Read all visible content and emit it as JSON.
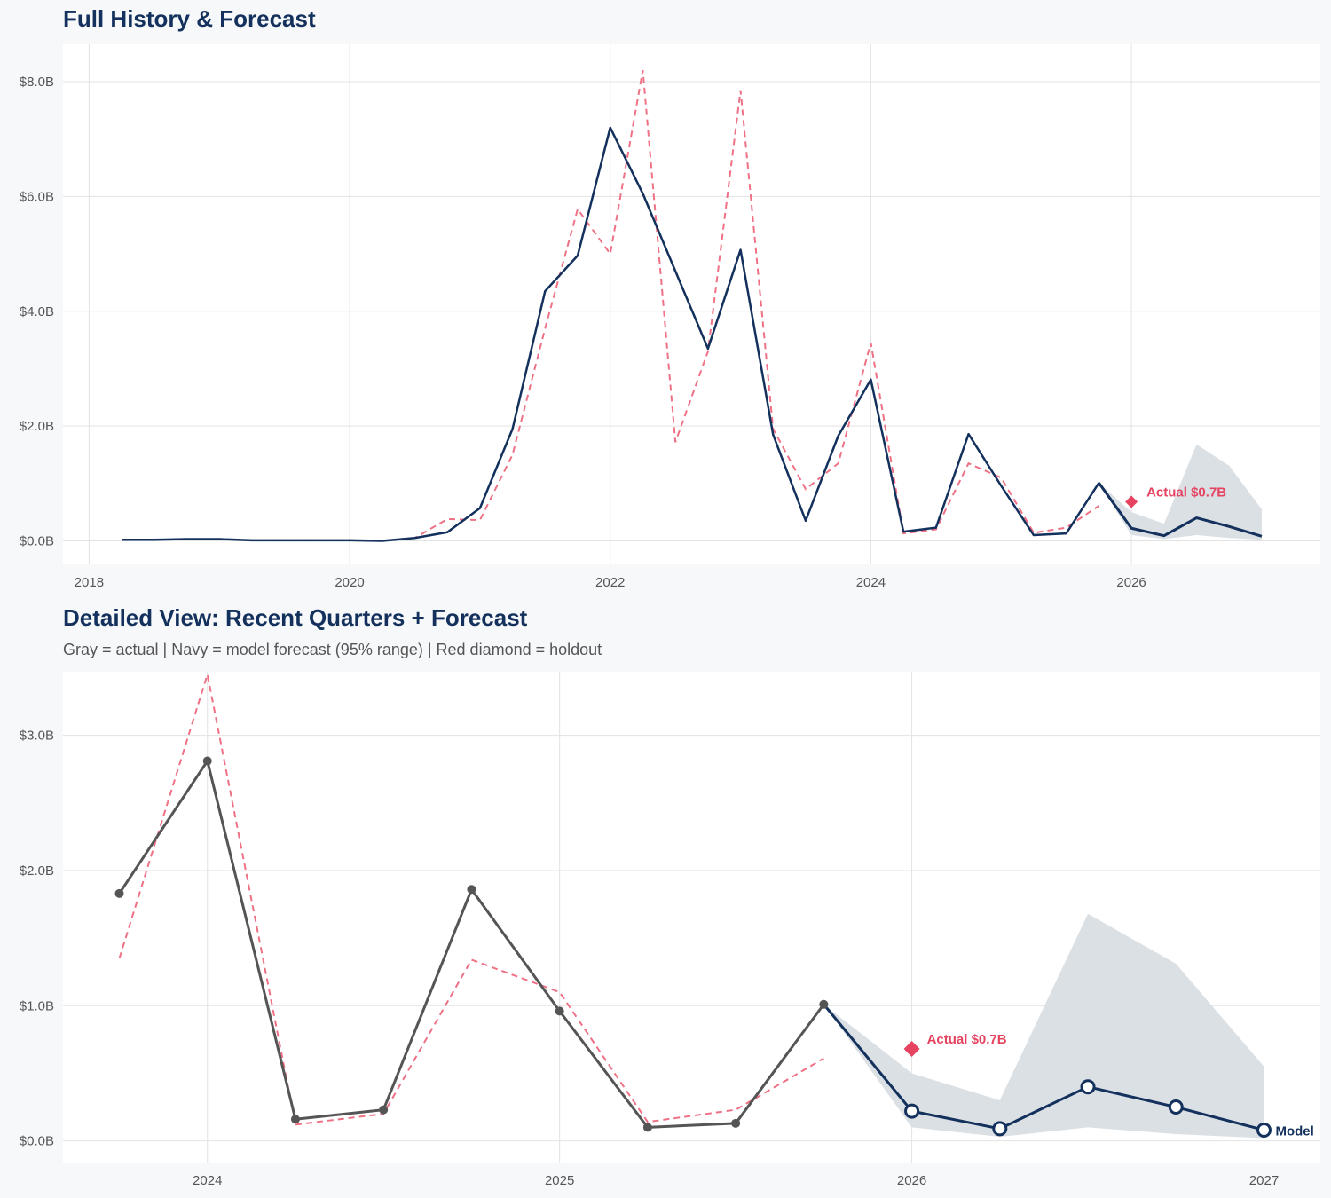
{
  "colors": {
    "actual": "#555555",
    "model": "#13315c",
    "fitted": "#ee7186",
    "holdout": "#e5435f",
    "band": "#d9dee4",
    "grid": "#e3e3e3"
  },
  "chart_data": [
    {
      "type": "line",
      "title": "Full History & Forecast",
      "xlim": [
        2017.8,
        2027.45
      ],
      "ylim": [
        -0.41,
        8.65
      ],
      "x_ticks": [
        {
          "v": 2018,
          "label": "2018"
        },
        {
          "v": 2020,
          "label": "2020"
        },
        {
          "v": 2022,
          "label": "2022"
        },
        {
          "v": 2024,
          "label": "2024"
        },
        {
          "v": 2026,
          "label": "2026"
        }
      ],
      "y_ticks": [
        {
          "v": 0,
          "label": "$0.0B"
        },
        {
          "v": 2,
          "label": "$2.0B"
        },
        {
          "v": 4,
          "label": "$4.0B"
        },
        {
          "v": 6,
          "label": "$6.0B"
        },
        {
          "v": 8,
          "label": "$8.0B"
        }
      ],
      "grid": true,
      "actual_color": "model",
      "actual_markers": false,
      "actual": {
        "x_start": 2018.25,
        "step": 0.25,
        "values": [
          0.02,
          0.02,
          0.03,
          0.03,
          0.01,
          0.01,
          0.01,
          0.01,
          0.0,
          0.05,
          0.15,
          0.57,
          1.95,
          4.35,
          4.97,
          7.2,
          6.05,
          4.7,
          3.35,
          5.07,
          1.85,
          0.35,
          1.83,
          2.81,
          0.16,
          0.23,
          1.86,
          0.96,
          0.1,
          0.13,
          1.01
        ]
      },
      "fitted": {
        "x_start": 2019.25,
        "step": 0.25,
        "values": [
          0.01,
          0.01,
          0.01,
          0.01,
          0.0,
          0.05,
          0.38,
          0.36,
          1.5,
          3.7,
          5.78,
          5.0,
          8.2,
          1.72,
          3.3,
          7.85,
          1.95,
          0.9,
          1.35,
          3.45,
          0.13,
          0.2,
          1.35,
          1.1,
          0.14,
          0.23,
          0.61
        ]
      },
      "forecast": {
        "x": [
          2025.75,
          2026.0,
          2026.25,
          2026.5,
          2026.75,
          2027.0
        ],
        "values": [
          1.01,
          0.22,
          0.09,
          0.4,
          0.25,
          0.08
        ],
        "upper": [
          1.01,
          0.5,
          0.3,
          1.68,
          1.31,
          0.55
        ],
        "lower": [
          1.01,
          0.1,
          0.03,
          0.1,
          0.05,
          0.02
        ],
        "markers": false,
        "label": ""
      },
      "holdout": {
        "x": 2026.0,
        "value": 0.68,
        "label": "Actual $0.7B"
      }
    },
    {
      "type": "line",
      "title": "Detailed View: Recent Quarters + Forecast",
      "subtitle": "Gray = actual  |  Navy = model forecast (95% range)  |  Red diamond = holdout",
      "xlim": [
        2023.59,
        2027.16
      ],
      "ylim": [
        -0.16,
        3.47
      ],
      "x_ticks": [
        {
          "v": 2024,
          "label": "2024"
        },
        {
          "v": 2025,
          "label": "2025"
        },
        {
          "v": 2026,
          "label": "2026"
        },
        {
          "v": 2027,
          "label": "2027"
        }
      ],
      "y_ticks": [
        {
          "v": 0,
          "label": "$0.0B"
        },
        {
          "v": 1,
          "label": "$1.0B"
        },
        {
          "v": 2,
          "label": "$2.0B"
        },
        {
          "v": 3,
          "label": "$3.0B"
        }
      ],
      "grid": true,
      "actual_color": "actual",
      "actual_markers": true,
      "actual": {
        "x_start": 2023.75,
        "step": 0.25,
        "values": [
          1.83,
          2.81,
          0.16,
          0.23,
          1.86,
          0.96,
          0.1,
          0.13,
          1.01
        ]
      },
      "fitted": {
        "x_start": 2023.75,
        "step": 0.25,
        "values": [
          1.35,
          3.45,
          0.12,
          0.2,
          1.34,
          1.1,
          0.14,
          0.23,
          0.61
        ]
      },
      "forecast": {
        "x": [
          2025.75,
          2026.0,
          2026.25,
          2026.5,
          2026.75,
          2027.0
        ],
        "values": [
          1.01,
          0.22,
          0.09,
          0.4,
          0.25,
          0.08
        ],
        "upper": [
          1.01,
          0.5,
          0.3,
          1.68,
          1.31,
          0.55
        ],
        "lower": [
          1.01,
          0.1,
          0.03,
          0.1,
          0.05,
          0.02
        ],
        "markers": true,
        "label": "Model"
      },
      "holdout": {
        "x": 2026.0,
        "value": 0.68,
        "label": "Actual $0.7B"
      }
    }
  ]
}
